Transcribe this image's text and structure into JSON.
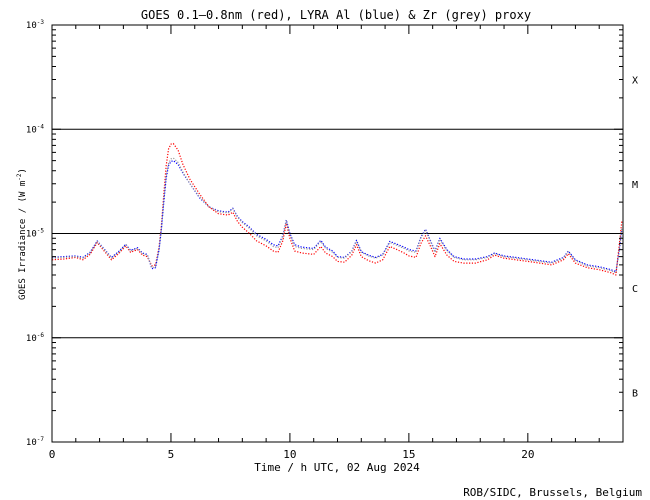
{
  "chart_data": {
    "type": "line",
    "title": "GOES 0.1—0.8nm (red), LYRA Al (blue) & Zr (grey) proxy",
    "xlabel": "Time / h UTC, 02 Aug 2024",
    "ylabel_prefix": "GOES Irradiance / (W m",
    "ylabel_exp": "-2",
    "ylabel_suffix": ")",
    "credit": "ROB/SIDC, Brussels, Belgium",
    "xlim": [
      0,
      24
    ],
    "ylim": [
      1e-07,
      0.001
    ],
    "yscale": "log",
    "x_ticks": [
      0,
      5,
      10,
      15,
      20
    ],
    "x_tick_labels": [
      "0",
      "5",
      "10",
      "15",
      "20"
    ],
    "y_ticks": [
      {
        "value": 0.001,
        "base": "10",
        "exp": "-3"
      },
      {
        "value": 0.0001,
        "base": "10",
        "exp": "-4"
      },
      {
        "value": 1e-05,
        "base": "10",
        "exp": "-5"
      },
      {
        "value": 1e-06,
        "base": "10",
        "exp": "-6"
      },
      {
        "value": 1e-07,
        "base": "10",
        "exp": "-7"
      }
    ],
    "flare_class_lines": [
      0.0001,
      1e-05,
      1e-06
    ],
    "flare_classes": [
      {
        "label": "X",
        "value": 0.0003
      },
      {
        "label": "M",
        "value": 3e-05
      },
      {
        "label": "C",
        "value": 3e-06
      },
      {
        "label": "B",
        "value": 3e-07
      }
    ],
    "series": [
      {
        "color": "#ff0000",
        "points": [
          [
            0,
            5.6e-06
          ],
          [
            0.5,
            5.7e-06
          ],
          [
            1.0,
            5.9e-06
          ],
          [
            1.3,
            5.6e-06
          ],
          [
            1.6,
            6.3e-06
          ],
          [
            1.9,
            8.2e-06
          ],
          [
            2.1,
            7.2e-06
          ],
          [
            2.5,
            5.6e-06
          ],
          [
            2.8,
            6.4e-06
          ],
          [
            3.1,
            7.6e-06
          ],
          [
            3.3,
            6.6e-06
          ],
          [
            3.6,
            7e-06
          ],
          [
            3.8,
            6.2e-06
          ],
          [
            4.0,
            6e-06
          ],
          [
            4.2,
            4.9e-06
          ],
          [
            4.35,
            5e-06
          ],
          [
            4.5,
            7.5e-06
          ],
          [
            4.6,
            1.2e-05
          ],
          [
            4.7,
            2.4e-05
          ],
          [
            4.8,
            4.5e-05
          ],
          [
            4.9,
            6.5e-05
          ],
          [
            5.0,
            7.2e-05
          ],
          [
            5.1,
            7.3e-05
          ],
          [
            5.3,
            6.3e-05
          ],
          [
            5.5,
            4.6e-05
          ],
          [
            5.8,
            3.3e-05
          ],
          [
            6.2,
            2.4e-05
          ],
          [
            6.6,
            1.8e-05
          ],
          [
            7.0,
            1.55e-05
          ],
          [
            7.4,
            1.5e-05
          ],
          [
            7.6,
            1.6e-05
          ],
          [
            7.8,
            1.3e-05
          ],
          [
            8.0,
            1.15e-05
          ],
          [
            8.3,
            1e-05
          ],
          [
            8.6,
            8.5e-06
          ],
          [
            9.0,
            7.6e-06
          ],
          [
            9.3,
            6.8e-06
          ],
          [
            9.5,
            6.6e-06
          ],
          [
            9.7,
            8.5e-06
          ],
          [
            9.85,
            1.25e-05
          ],
          [
            10.0,
            9e-06
          ],
          [
            10.2,
            6.8e-06
          ],
          [
            10.5,
            6.5e-06
          ],
          [
            11.0,
            6.3e-06
          ],
          [
            11.3,
            7.5e-06
          ],
          [
            11.5,
            6.5e-06
          ],
          [
            11.8,
            6e-06
          ],
          [
            12.0,
            5.4e-06
          ],
          [
            12.3,
            5.3e-06
          ],
          [
            12.6,
            6.2e-06
          ],
          [
            12.8,
            7.8e-06
          ],
          [
            13.0,
            6e-06
          ],
          [
            13.3,
            5.5e-06
          ],
          [
            13.6,
            5.2e-06
          ],
          [
            13.9,
            5.6e-06
          ],
          [
            14.2,
            7.5e-06
          ],
          [
            14.5,
            7e-06
          ],
          [
            14.8,
            6.5e-06
          ],
          [
            15.0,
            6.1e-06
          ],
          [
            15.3,
            5.9e-06
          ],
          [
            15.5,
            8e-06
          ],
          [
            15.7,
            9.5e-06
          ],
          [
            15.9,
            7.6e-06
          ],
          [
            16.1,
            6e-06
          ],
          [
            16.3,
            8e-06
          ],
          [
            16.6,
            6.2e-06
          ],
          [
            16.9,
            5.4e-06
          ],
          [
            17.3,
            5.2e-06
          ],
          [
            17.8,
            5.2e-06
          ],
          [
            18.3,
            5.6e-06
          ],
          [
            18.6,
            6.2e-06
          ],
          [
            19.0,
            5.8e-06
          ],
          [
            19.5,
            5.6e-06
          ],
          [
            20.0,
            5.4e-06
          ],
          [
            20.5,
            5.2e-06
          ],
          [
            21.0,
            5e-06
          ],
          [
            21.5,
            5.6e-06
          ],
          [
            21.7,
            6.4e-06
          ],
          [
            22.0,
            5.2e-06
          ],
          [
            22.5,
            4.7e-06
          ],
          [
            23.0,
            4.5e-06
          ],
          [
            23.5,
            4.2e-06
          ],
          [
            23.7,
            4e-06
          ],
          [
            23.85,
            8e-06
          ],
          [
            23.95,
            1.3e-05
          ]
        ]
      },
      {
        "color": "#0000ff",
        "points": [
          [
            0,
            5.9e-06
          ],
          [
            0.5,
            6e-06
          ],
          [
            1.0,
            6.1e-06
          ],
          [
            1.3,
            5.9e-06
          ],
          [
            1.6,
            6.6e-06
          ],
          [
            1.9,
            8.5e-06
          ],
          [
            2.1,
            7.5e-06
          ],
          [
            2.5,
            5.9e-06
          ],
          [
            2.8,
            6.7e-06
          ],
          [
            3.1,
            7.9e-06
          ],
          [
            3.3,
            6.9e-06
          ],
          [
            3.6,
            7.3e-06
          ],
          [
            3.8,
            6.5e-06
          ],
          [
            4.0,
            6.3e-06
          ],
          [
            4.2,
            4.6e-06
          ],
          [
            4.35,
            4.7e-06
          ],
          [
            4.5,
            7e-06
          ],
          [
            4.6,
            1.1e-05
          ],
          [
            4.7,
            2e-05
          ],
          [
            4.8,
            3.4e-05
          ],
          [
            4.9,
            4.5e-05
          ],
          [
            5.0,
            4.9e-05
          ],
          [
            5.1,
            5e-05
          ],
          [
            5.3,
            4.6e-05
          ],
          [
            5.5,
            3.8e-05
          ],
          [
            5.8,
            3e-05
          ],
          [
            6.2,
            2.2e-05
          ],
          [
            6.6,
            1.8e-05
          ],
          [
            7.0,
            1.65e-05
          ],
          [
            7.4,
            1.6e-05
          ],
          [
            7.6,
            1.75e-05
          ],
          [
            7.8,
            1.45e-05
          ],
          [
            8.0,
            1.3e-05
          ],
          [
            8.3,
            1.15e-05
          ],
          [
            8.6,
            9.8e-06
          ],
          [
            9.0,
            8.8e-06
          ],
          [
            9.3,
            7.8e-06
          ],
          [
            9.5,
            7.6e-06
          ],
          [
            9.7,
            9.5e-06
          ],
          [
            9.85,
            1.35e-05
          ],
          [
            10.0,
            1e-05
          ],
          [
            10.2,
            7.8e-06
          ],
          [
            10.5,
            7.4e-06
          ],
          [
            11.0,
            7.2e-06
          ],
          [
            11.3,
            8.6e-06
          ],
          [
            11.5,
            7.4e-06
          ],
          [
            11.8,
            6.8e-06
          ],
          [
            12.0,
            6e-06
          ],
          [
            12.3,
            5.9e-06
          ],
          [
            12.6,
            6.8e-06
          ],
          [
            12.8,
            8.6e-06
          ],
          [
            13.0,
            6.7e-06
          ],
          [
            13.3,
            6.2e-06
          ],
          [
            13.6,
            5.9e-06
          ],
          [
            13.9,
            6.3e-06
          ],
          [
            14.2,
            8.4e-06
          ],
          [
            14.5,
            7.9e-06
          ],
          [
            14.8,
            7.4e-06
          ],
          [
            15.0,
            7e-06
          ],
          [
            15.3,
            6.8e-06
          ],
          [
            15.5,
            9.2e-06
          ],
          [
            15.7,
            1.1e-05
          ],
          [
            15.9,
            8.6e-06
          ],
          [
            16.1,
            6.8e-06
          ],
          [
            16.3,
            9e-06
          ],
          [
            16.6,
            7e-06
          ],
          [
            16.9,
            6e-06
          ],
          [
            17.3,
            5.7e-06
          ],
          [
            17.8,
            5.7e-06
          ],
          [
            18.3,
            6e-06
          ],
          [
            18.6,
            6.5e-06
          ],
          [
            19.0,
            6.1e-06
          ],
          [
            19.5,
            5.9e-06
          ],
          [
            20.0,
            5.7e-06
          ],
          [
            20.5,
            5.5e-06
          ],
          [
            21.0,
            5.3e-06
          ],
          [
            21.5,
            5.9e-06
          ],
          [
            21.7,
            6.8e-06
          ],
          [
            22.0,
            5.6e-06
          ],
          [
            22.5,
            5e-06
          ],
          [
            23.0,
            4.8e-06
          ],
          [
            23.5,
            4.5e-06
          ],
          [
            23.7,
            4.3e-06
          ],
          [
            23.85,
            7e-06
          ],
          [
            23.95,
            1.1e-05
          ]
        ]
      },
      {
        "color": "#999999",
        "points": [
          [
            0,
            5.8e-06
          ],
          [
            0.5,
            5.9e-06
          ],
          [
            1.0,
            6e-06
          ],
          [
            1.3,
            5.8e-06
          ],
          [
            1.6,
            6.5e-06
          ],
          [
            1.9,
            8.4e-06
          ],
          [
            2.1,
            7.4e-06
          ],
          [
            2.5,
            5.8e-06
          ],
          [
            2.8,
            6.6e-06
          ],
          [
            3.1,
            7.8e-06
          ],
          [
            3.3,
            6.8e-06
          ],
          [
            3.6,
            7.2e-06
          ],
          [
            3.8,
            6.4e-06
          ],
          [
            4.0,
            6.2e-06
          ],
          [
            4.2,
            4.7e-06
          ],
          [
            4.35,
            4.8e-06
          ],
          [
            4.5,
            7.1e-06
          ],
          [
            4.6,
            1.1e-05
          ],
          [
            4.7,
            2.1e-05
          ],
          [
            4.8,
            3.6e-05
          ],
          [
            4.9,
            4.7e-05
          ],
          [
            5.0,
            5.2e-05
          ],
          [
            5.1,
            5.3e-05
          ],
          [
            5.3,
            4.8e-05
          ],
          [
            5.5,
            3.9e-05
          ],
          [
            5.8,
            3e-05
          ],
          [
            6.2,
            2.25e-05
          ],
          [
            6.6,
            1.8e-05
          ],
          [
            7.0,
            1.62e-05
          ],
          [
            7.4,
            1.58e-05
          ],
          [
            7.6,
            1.72e-05
          ],
          [
            7.8,
            1.42e-05
          ],
          [
            8.0,
            1.27e-05
          ],
          [
            8.3,
            1.12e-05
          ],
          [
            8.6,
            9.5e-06
          ],
          [
            9.0,
            8.5e-06
          ],
          [
            9.3,
            7.5e-06
          ],
          [
            9.5,
            7.3e-06
          ],
          [
            9.7,
            9.2e-06
          ],
          [
            9.85,
            1.32e-05
          ],
          [
            10.0,
            9.8e-06
          ],
          [
            10.2,
            7.5e-06
          ],
          [
            10.5,
            7.2e-06
          ],
          [
            11.0,
            7e-06
          ],
          [
            11.3,
            8.4e-06
          ],
          [
            11.5,
            7.2e-06
          ],
          [
            11.8,
            6.6e-06
          ],
          [
            12.0,
            5.9e-06
          ],
          [
            12.3,
            5.8e-06
          ],
          [
            12.6,
            6.7e-06
          ],
          [
            12.8,
            8.4e-06
          ],
          [
            13.0,
            6.6e-06
          ],
          [
            13.3,
            6.1e-06
          ],
          [
            13.6,
            5.8e-06
          ],
          [
            13.9,
            6.2e-06
          ],
          [
            14.2,
            8.2e-06
          ],
          [
            14.5,
            7.7e-06
          ],
          [
            14.8,
            7.2e-06
          ],
          [
            15.0,
            6.8e-06
          ],
          [
            15.3,
            6.6e-06
          ],
          [
            15.5,
            9e-06
          ],
          [
            15.7,
            1.07e-05
          ],
          [
            15.9,
            8.4e-06
          ],
          [
            16.1,
            6.6e-06
          ],
          [
            16.3,
            8.8e-06
          ],
          [
            16.6,
            6.8e-06
          ],
          [
            16.9,
            5.9e-06
          ],
          [
            17.3,
            5.6e-06
          ],
          [
            17.8,
            5.6e-06
          ],
          [
            18.3,
            5.9e-06
          ],
          [
            18.6,
            6.4e-06
          ],
          [
            19.0,
            6e-06
          ],
          [
            19.5,
            5.8e-06
          ],
          [
            20.0,
            5.6e-06
          ],
          [
            20.5,
            5.4e-06
          ],
          [
            21.0,
            5.2e-06
          ],
          [
            21.5,
            5.8e-06
          ],
          [
            21.7,
            6.7e-06
          ],
          [
            22.0,
            5.5e-06
          ],
          [
            22.5,
            4.9e-06
          ],
          [
            23.0,
            4.7e-06
          ],
          [
            23.5,
            4.4e-06
          ],
          [
            23.7,
            4.2e-06
          ],
          [
            23.85,
            7.2e-06
          ],
          [
            23.95,
            1.15e-05
          ]
        ]
      }
    ]
  }
}
